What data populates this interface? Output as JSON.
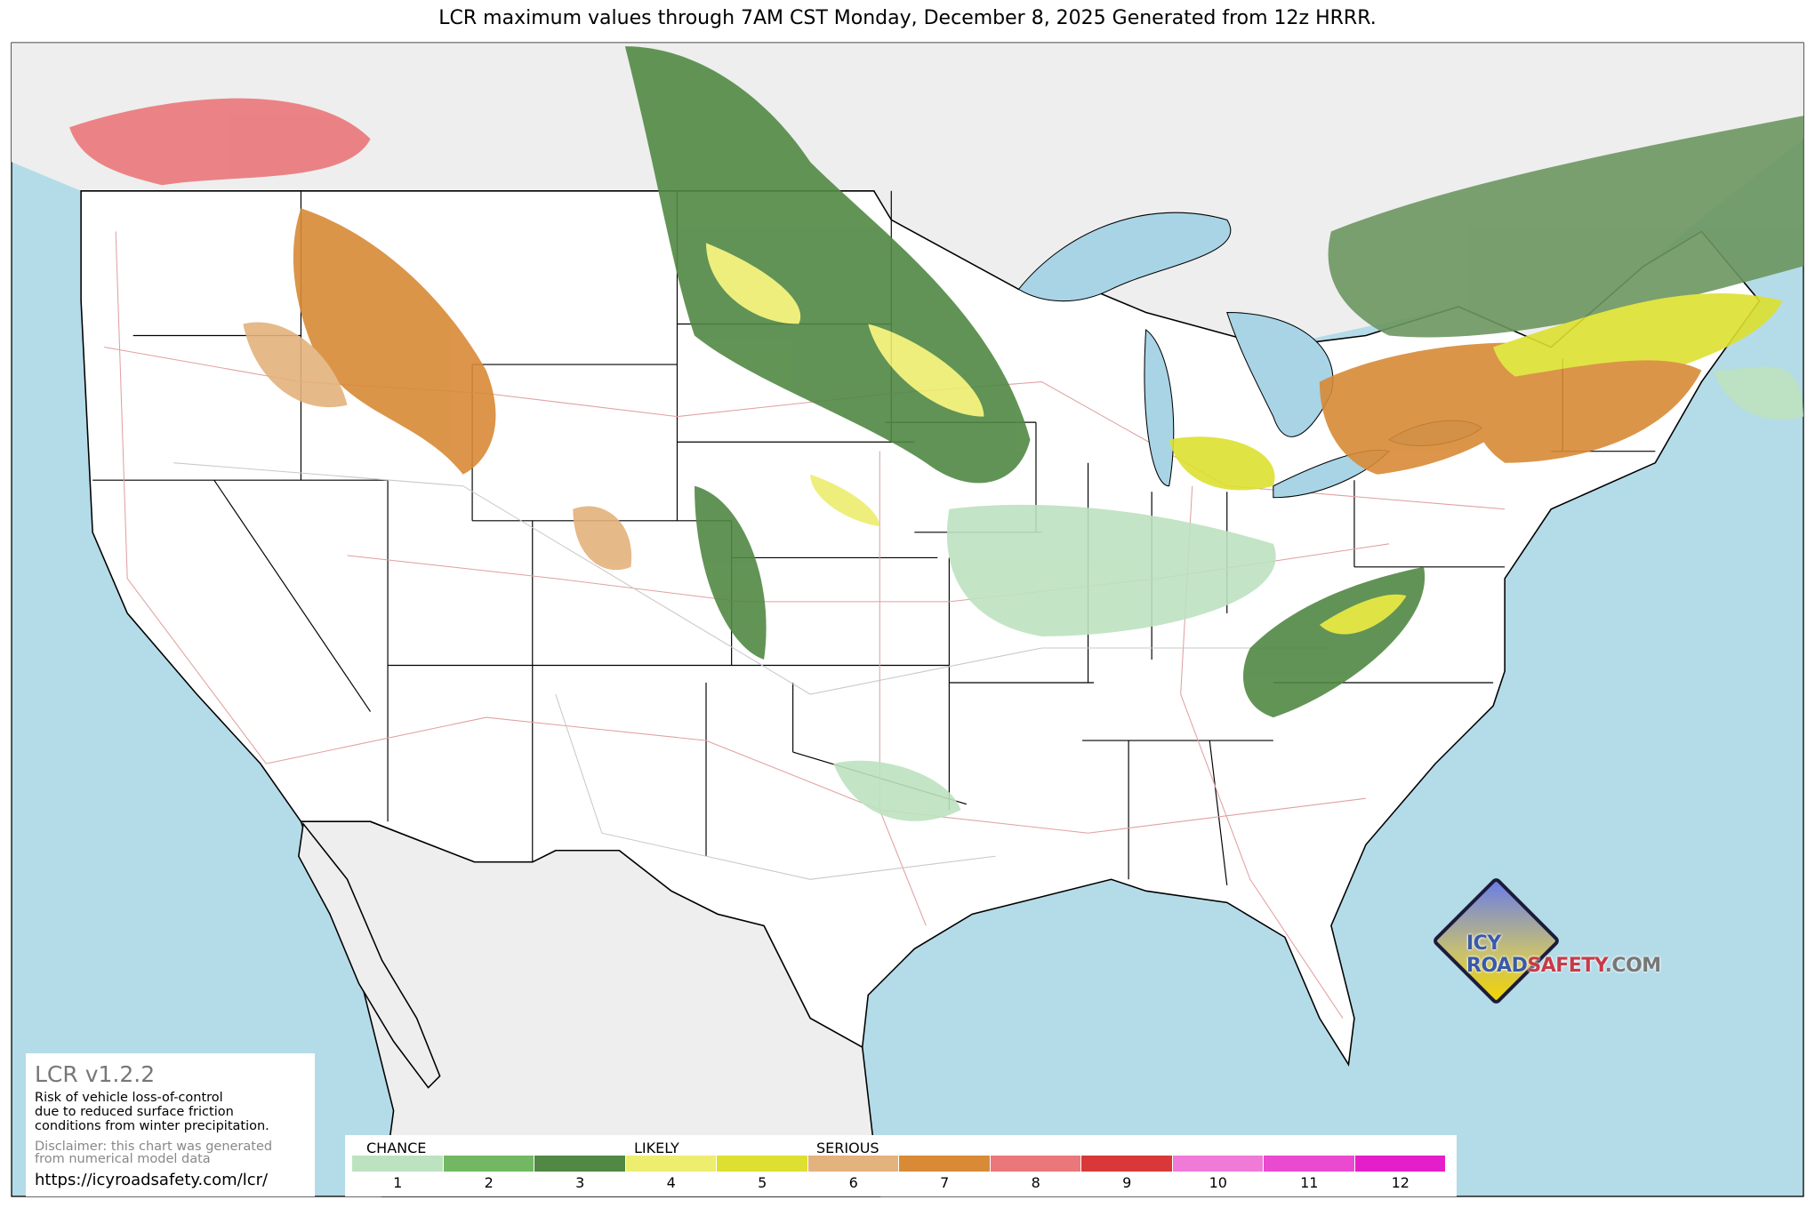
{
  "title": "LCR maximum values through 7AM CST Monday, December 8, 2025 Generated from 12z HRRR.",
  "map": {
    "ocean_color": "#b4dbe8",
    "us_land_color": "#ffffff",
    "foreign_land_color": "#eeeeee",
    "lake_color": "#a8d4e6",
    "road_interstate_color": "#e0a0a0",
    "road_other_color": "#c8c8c8"
  },
  "info_panel": {
    "version": "LCR v1.2.2",
    "description_lines": [
      "Risk of vehicle loss-of-control",
      "due to reduced surface friction",
      "conditions from winter precipitation."
    ],
    "disclaimer_lines": [
      "Disclaimer: this chart was generated",
      "from numerical model data"
    ],
    "url": "https://icyroadsafety.com/lcr/"
  },
  "colorbar": {
    "headings": {
      "chance": "CHANCE",
      "likely": "LIKELY",
      "serious": "SERIOUS"
    },
    "levels": [
      {
        "label": "1",
        "color": "#bde2c0"
      },
      {
        "label": "2",
        "color": "#72b862"
      },
      {
        "label": "3",
        "color": "#518844"
      },
      {
        "label": "4",
        "color": "#eded6f"
      },
      {
        "label": "5",
        "color": "#dde030"
      },
      {
        "label": "6",
        "color": "#e4b27c"
      },
      {
        "label": "7",
        "color": "#d88a36"
      },
      {
        "label": "8",
        "color": "#ea777a"
      },
      {
        "label": "9",
        "color": "#d83838"
      },
      {
        "label": "10",
        "color": "#f07ad8"
      },
      {
        "label": "11",
        "color": "#ea4ad0"
      },
      {
        "label": "12",
        "color": "#e41ec8"
      }
    ]
  },
  "logo": {
    "part1": "ICY ROAD",
    "part2": "SAFETY",
    "part3": ".COM"
  }
}
